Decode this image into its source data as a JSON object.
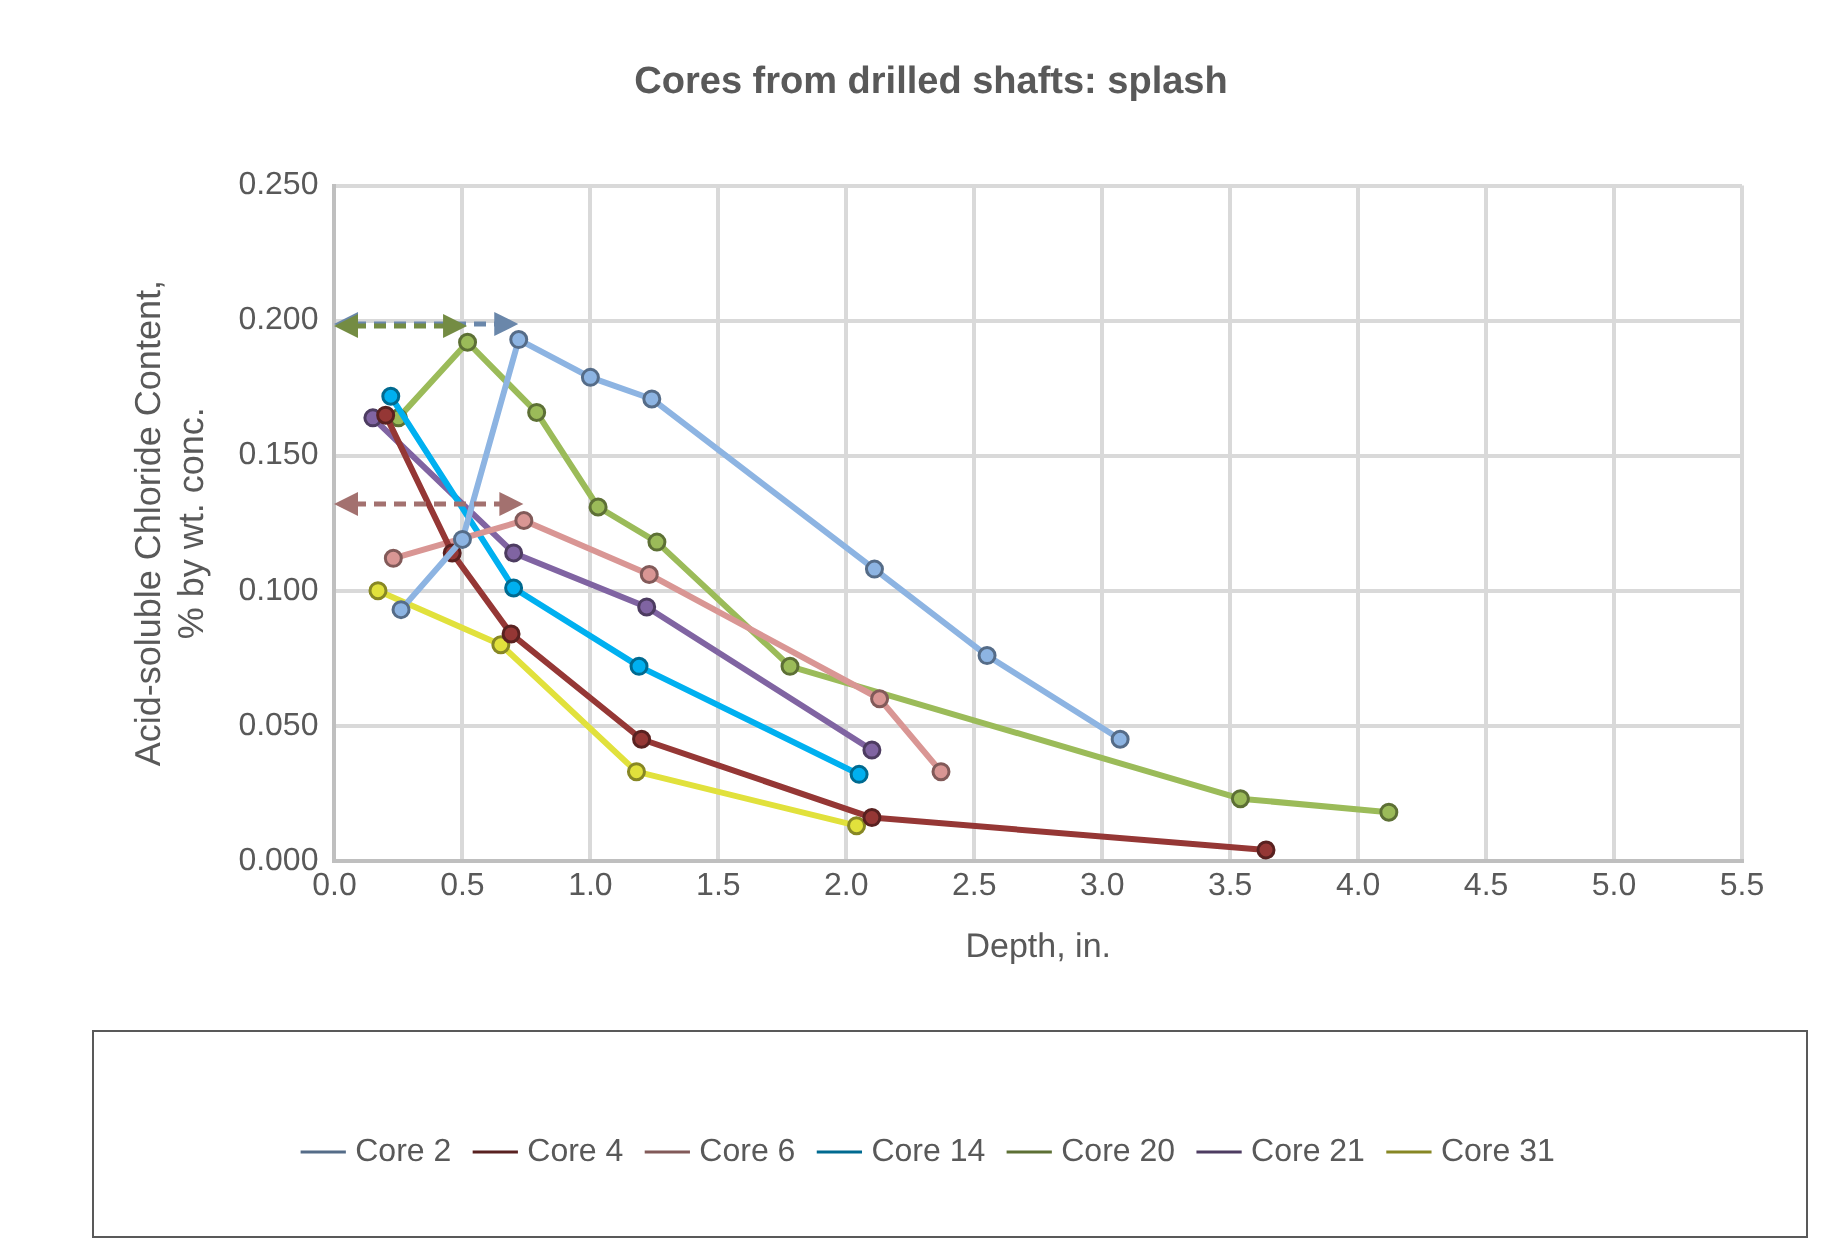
{
  "chart_data": {
    "type": "line",
    "title": "Cores from drilled shafts: splash",
    "xlabel": "Depth, in.",
    "ylabel": "Acid-soluble Chloride Content, % by wt. conc.",
    "xlim": [
      0,
      5.5
    ],
    "ylim": [
      0,
      0.25
    ],
    "xticks": [
      {
        "value": 0,
        "label": "0.0"
      },
      {
        "value": 0.5,
        "label": "0.5"
      },
      {
        "value": 1,
        "label": "1.0"
      },
      {
        "value": 1.5,
        "label": "1.5"
      },
      {
        "value": 2,
        "label": "2.0"
      },
      {
        "value": 2.5,
        "label": "2.5"
      },
      {
        "value": 3,
        "label": "3.0"
      },
      {
        "value": 3.5,
        "label": "3.5"
      },
      {
        "value": 4,
        "label": "4.0"
      },
      {
        "value": 4.5,
        "label": "4.5"
      },
      {
        "value": 5,
        "label": "5.0"
      },
      {
        "value": 5.5,
        "label": "5.5"
      }
    ],
    "yticks": [
      {
        "value": 0,
        "label": "0.000"
      },
      {
        "value": 0.05,
        "label": "0.050"
      },
      {
        "value": 0.1,
        "label": "0.100"
      },
      {
        "value": 0.15,
        "label": "0.150"
      },
      {
        "value": 0.2,
        "label": "0.200"
      },
      {
        "value": 0.25,
        "label": "0.250"
      }
    ],
    "grid": true,
    "legend": "bottom",
    "marker": "circle",
    "line_style": "solid",
    "series": [
      {
        "name": "Core 2",
        "color": "#8db4e2",
        "x": [
          0.26,
          0.5,
          0.72,
          1.0,
          1.24,
          2.11,
          2.55,
          3.07
        ],
        "values": [
          0.093,
          0.119,
          0.193,
          0.179,
          0.171,
          0.108,
          0.076,
          0.045
        ]
      },
      {
        "name": "Core 4",
        "color": "#953735",
        "x": [
          0.2,
          0.46,
          0.69,
          1.2,
          2.1,
          3.64
        ],
        "values": [
          0.165,
          0.114,
          0.084,
          0.045,
          0.016,
          0.004
        ]
      },
      {
        "name": "Core 6",
        "color": "#d99694",
        "x": [
          0.23,
          0.74,
          1.23,
          2.13,
          2.37
        ],
        "values": [
          0.112,
          0.126,
          0.106,
          0.06,
          0.033
        ]
      },
      {
        "name": "Core 14",
        "color": "#00b0f0",
        "x": [
          0.22,
          0.7,
          1.19,
          2.05
        ],
        "values": [
          0.172,
          0.101,
          0.072,
          0.032
        ]
      },
      {
        "name": "Core 20",
        "color": "#9bbb59",
        "x": [
          0.25,
          0.52,
          0.79,
          1.03,
          1.26,
          1.78,
          3.54,
          4.12
        ],
        "values": [
          0.164,
          0.192,
          0.166,
          0.131,
          0.118,
          0.072,
          0.023,
          0.018
        ]
      },
      {
        "name": "Core 21",
        "color": "#8064a2",
        "x": [
          0.15,
          0.7,
          1.22,
          2.1
        ],
        "values": [
          0.164,
          0.114,
          0.094,
          0.041
        ]
      },
      {
        "name": "Core 31",
        "color": "#e1e13c",
        "x": [
          0.17,
          0.65,
          1.18,
          2.04
        ],
        "values": [
          0.1,
          0.08,
          0.033,
          0.013
        ]
      }
    ]
  }
}
